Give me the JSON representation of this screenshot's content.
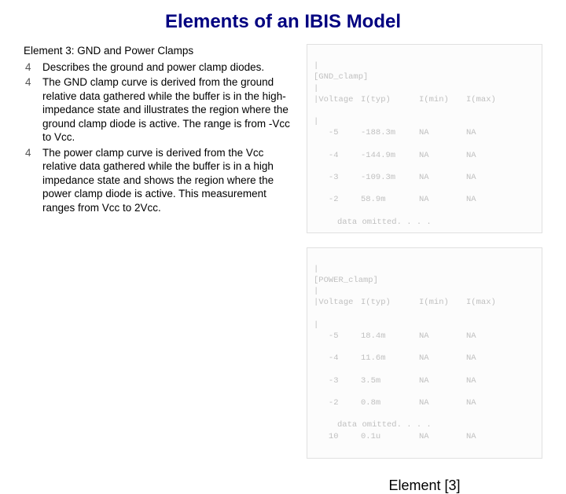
{
  "title": "Elements of an IBIS Model",
  "subtitle": "Element 3: GND and Power Clamps",
  "bullets": [
    "Describes the ground and power clamp diodes.",
    "The GND clamp curve is derived from the ground relative data gathered while the buffer is in the high-impedance state and illustrates the region where the ground clamp diode is active. The range is from -Vcc to Vcc.",
    "The power clamp curve is derived from the Vcc relative data gathered while the buffer is in a high impedance state and shows the region where the power clamp diode is active. This measurement ranges from Vcc to 2Vcc."
  ],
  "tables": {
    "gnd": {
      "section": "[GND_clamp]",
      "headers": [
        "Voltage",
        "I(typ)",
        "I(min)",
        "I(max)"
      ],
      "rows": [
        [
          "-5",
          "-188.3m",
          "NA",
          "NA"
        ],
        [
          "-4",
          "-144.9m",
          "NA",
          "NA"
        ],
        [
          "-3",
          "-109.3m",
          "NA",
          "NA"
        ],
        [
          "-2",
          "58.9m",
          "NA",
          "NA"
        ]
      ],
      "omitted": "data omitted. . . ."
    },
    "power": {
      "section": "[POWER_clamp]",
      "headers": [
        "Voltage",
        "I(typ)",
        "I(min)",
        "I(max)"
      ],
      "rows": [
        [
          "-5",
          "18.4m",
          "NA",
          "NA"
        ],
        [
          "-4",
          "11.6m",
          "NA",
          "NA"
        ],
        [
          "-3",
          "3.5m",
          "NA",
          "NA"
        ],
        [
          "-2",
          "0.8m",
          "NA",
          "NA"
        ]
      ],
      "omitted": "data omitted. . . .",
      "tail": [
        "10",
        "0.1u",
        "NA",
        "NA"
      ]
    }
  },
  "caption": "Element [3]",
  "styling": {
    "title_color": "#000080",
    "title_fontsize": 24,
    "body_fontsize": 13.5,
    "table_text_color": "#c0c0c0",
    "table_border_color": "#e0e0e0",
    "table_fontsize": 10.5,
    "caption_fontsize": 18,
    "background": "#ffffff",
    "bullet_glyph": "4"
  }
}
